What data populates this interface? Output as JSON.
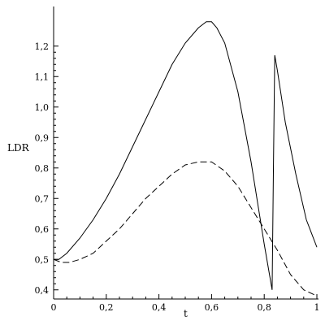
{
  "chart_data": {
    "type": "line",
    "xlabel": "t",
    "ylabel": "LDR",
    "xlim": [
      0,
      1
    ],
    "ylim": [
      0.37,
      1.33
    ],
    "grid": false,
    "legend": "none",
    "x_ticks": [
      {
        "v": 0.0,
        "label": "0"
      },
      {
        "v": 0.2,
        "label": "0,2"
      },
      {
        "v": 0.4,
        "label": "0,4"
      },
      {
        "v": 0.6,
        "label": "0,6"
      },
      {
        "v": 0.8,
        "label": "0,8"
      },
      {
        "v": 1.0,
        "label": "1"
      }
    ],
    "y_ticks": [
      {
        "v": 0.4,
        "label": "0,4"
      },
      {
        "v": 0.5,
        "label": "0,5"
      },
      {
        "v": 0.6,
        "label": "0,6"
      },
      {
        "v": 0.7,
        "label": "0,7"
      },
      {
        "v": 0.8,
        "label": "0,8"
      },
      {
        "v": 0.9,
        "label": "0,9"
      },
      {
        "v": 1.0,
        "label": "1,0"
      },
      {
        "v": 1.1,
        "label": "1,1"
      },
      {
        "v": 1.2,
        "label": "1,2"
      }
    ],
    "series": [
      {
        "style": "solid",
        "color": "#000000",
        "x": [
          0.0,
          0.02,
          0.05,
          0.1,
          0.15,
          0.2,
          0.25,
          0.3,
          0.35,
          0.4,
          0.45,
          0.5,
          0.55,
          0.58,
          0.6,
          0.62,
          0.65,
          0.7,
          0.75,
          0.8,
          0.83,
          0.835,
          0.84,
          0.85,
          0.88,
          0.92,
          0.96,
          1.0
        ],
        "y": [
          0.5,
          0.5,
          0.52,
          0.57,
          0.63,
          0.7,
          0.78,
          0.87,
          0.96,
          1.05,
          1.14,
          1.21,
          1.26,
          1.28,
          1.28,
          1.26,
          1.21,
          1.05,
          0.82,
          0.55,
          0.4,
          0.8,
          1.17,
          1.12,
          0.95,
          0.78,
          0.63,
          0.54
        ]
      },
      {
        "style": "dashed",
        "color": "#000000",
        "x": [
          0.0,
          0.03,
          0.06,
          0.1,
          0.15,
          0.2,
          0.25,
          0.3,
          0.35,
          0.4,
          0.45,
          0.5,
          0.55,
          0.58,
          0.6,
          0.65,
          0.7,
          0.75,
          0.8,
          0.85,
          0.9,
          0.95,
          1.0
        ],
        "y": [
          0.5,
          0.49,
          0.49,
          0.5,
          0.52,
          0.56,
          0.6,
          0.65,
          0.7,
          0.74,
          0.78,
          0.81,
          0.82,
          0.82,
          0.82,
          0.79,
          0.74,
          0.67,
          0.6,
          0.53,
          0.45,
          0.4,
          0.38
        ]
      }
    ]
  }
}
